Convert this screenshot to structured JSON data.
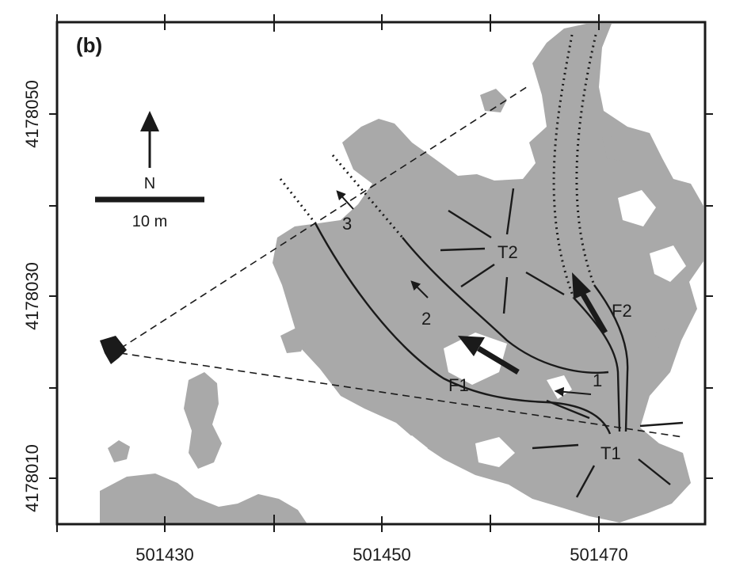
{
  "panel_label": "(b)",
  "x_ticks": [
    "501430",
    "501450",
    "501470"
  ],
  "y_ticks": [
    "4178050",
    "4178030",
    "4178010"
  ],
  "north_label": "N",
  "scale_label": "10 m",
  "features": {
    "f1": "F1",
    "f2": "F2",
    "t1": "T1",
    "t2": "T2",
    "n1": "1",
    "n2": "2",
    "n3": "3"
  },
  "colors": {
    "terrain": "#a9a9a9",
    "ink": "#1a1a1a",
    "background": "#ffffff"
  }
}
